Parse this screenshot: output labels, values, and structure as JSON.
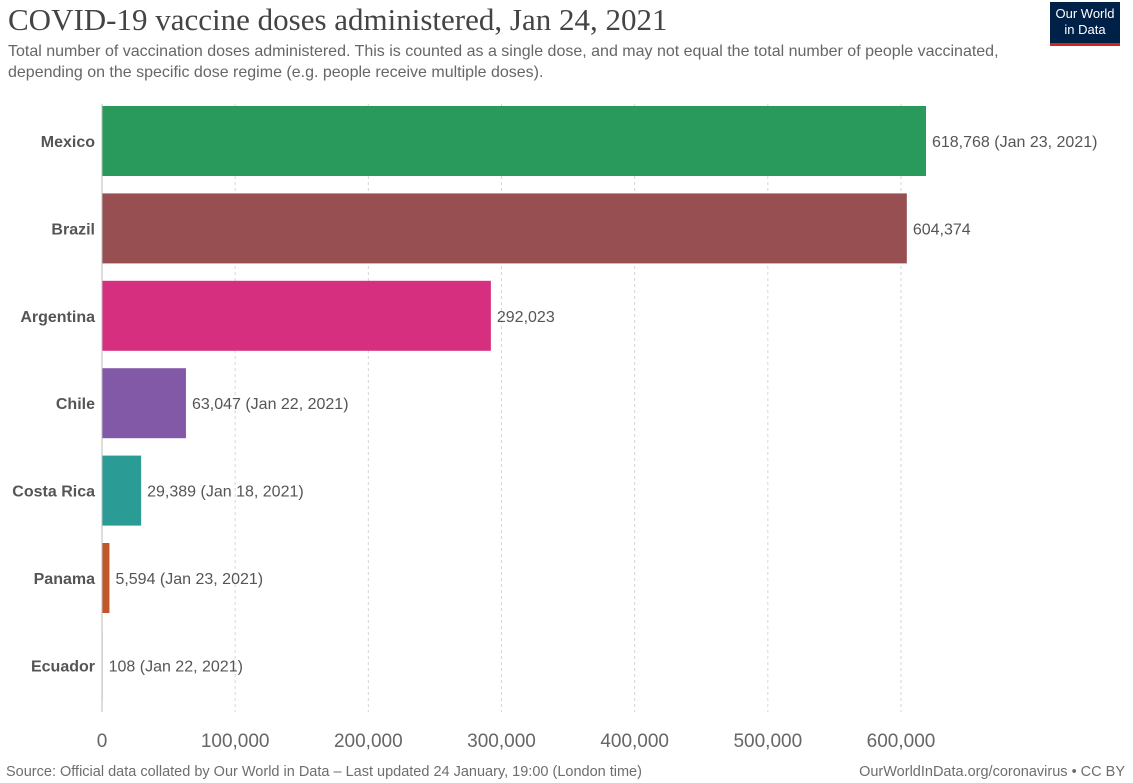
{
  "header": {
    "title": "COVID-19 vaccine doses administered, Jan 24, 2021",
    "subtitle": "Total number of vaccination doses administered. This is counted as a single dose, and may not equal the total number of people vaccinated, depending on the specific dose regime (e.g. people receive multiple doses).",
    "logo_line1": "Our World",
    "logo_line2": "in Data"
  },
  "footer": {
    "source": "Source: Official data collated by Our World in Data – Last updated 24 January, 19:00 (London time)",
    "credit": "OurWorldInData.org/coronavirus • CC BY"
  },
  "colors": {
    "logo_bg": "#002147",
    "logo_accent": "#ce261e"
  },
  "chart_data": {
    "type": "bar",
    "orientation": "horizontal",
    "title": "COVID-19 vaccine doses administered, Jan 24, 2021",
    "categories": [
      "Mexico",
      "Brazil",
      "Argentina",
      "Chile",
      "Costa Rica",
      "Panama",
      "Ecuador"
    ],
    "values": [
      618768,
      604374,
      292023,
      63047,
      29389,
      5594,
      108
    ],
    "value_labels": [
      "618,768 (Jan 23, 2021)",
      "604,374",
      "292,023",
      "63,047 (Jan 22, 2021)",
      "29,389 (Jan 18, 2021)",
      "5,594 (Jan 23, 2021)",
      "108 (Jan 22, 2021)"
    ],
    "colors": [
      "#2a9a5c",
      "#984f51",
      "#d72f7f",
      "#8159a6",
      "#2a9b95",
      "#c3552b",
      "#aaaaaa"
    ],
    "xlim": [
      0,
      600000
    ],
    "xticks": [
      0,
      100000,
      200000,
      300000,
      400000,
      500000,
      600000
    ],
    "xtick_labels": [
      "0",
      "100,000",
      "200,000",
      "300,000",
      "400,000",
      "500,000",
      "600,000"
    ],
    "grid": true,
    "xlabel": "",
    "ylabel": ""
  }
}
